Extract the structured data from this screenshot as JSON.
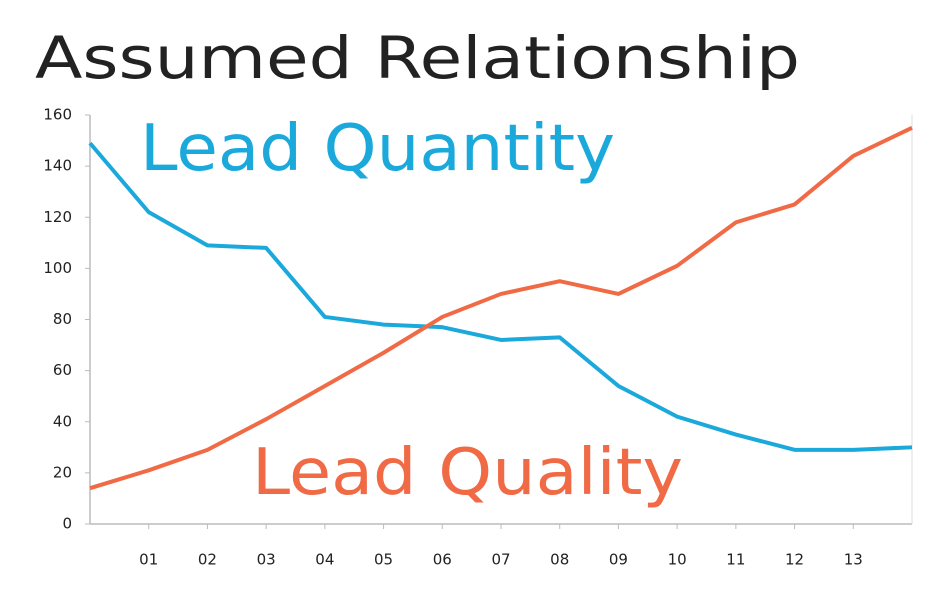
{
  "chart_data": {
    "type": "line",
    "title": "Assumed Relationship",
    "categories": [
      null,
      "01",
      "02",
      "03",
      "04",
      "05",
      "06",
      "07",
      "08",
      "09",
      "10",
      "11",
      "12",
      "13",
      null
    ],
    "series": [
      {
        "name": "Lead Quantity",
        "color": "#1ba9dc",
        "values": [
          149,
          122,
          109,
          108,
          81,
          78,
          77,
          72,
          73,
          54,
          42,
          35,
          29,
          29,
          30
        ]
      },
      {
        "name": "Lead Quality",
        "color": "#f06a45",
        "values": [
          14,
          21,
          29,
          41,
          54,
          67,
          81,
          90,
          95,
          90,
          101,
          118,
          125,
          144,
          155
        ]
      }
    ],
    "ylim": [
      0,
      160
    ],
    "yticks": [
      0,
      20,
      40,
      60,
      80,
      100,
      120,
      140,
      160
    ],
    "grid": false
  }
}
